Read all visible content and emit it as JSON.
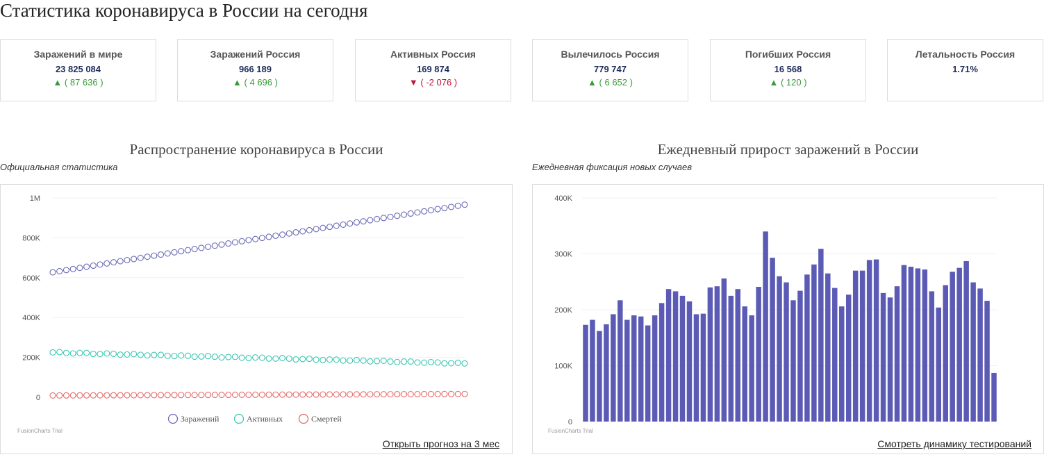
{
  "page": {
    "title": "Статистика коронавируса в России на сегодня"
  },
  "cards": [
    {
      "title": "Заражений в мире",
      "value": "23 825 084",
      "arrow": "▲",
      "delta": "( 87 636 )",
      "trend": "up"
    },
    {
      "title": "Заражений Россия",
      "value": "966 189",
      "arrow": "▲",
      "delta": "( 4 696 )",
      "trend": "up"
    },
    {
      "title": "Активных Россия",
      "value": "169 874",
      "arrow": "▼",
      "delta": "( -2 076 )",
      "trend": "down"
    },
    {
      "title": "Вылечилось Россия",
      "value": "779 747",
      "arrow": "▲",
      "delta": "( 6 652 )",
      "trend": "up"
    },
    {
      "title": "Погибших Россия",
      "value": "16 568",
      "arrow": "▲",
      "delta": "( 120 )",
      "trend": "up"
    },
    {
      "title": "Летальность Россия",
      "value": "1.71%",
      "arrow": "",
      "delta": "",
      "trend": "none"
    }
  ],
  "left_section": {
    "title": "Распространение коронавируса в России",
    "subtitle": "Официальная статистика",
    "trial": "FusionCharts Trial",
    "link": "Открыть прогноз на 3 мес"
  },
  "right_section": {
    "title": "Ежедневный прирост заражений в России",
    "subtitle": "Ежедневная фиксация новых случаев",
    "trial": "FusionCharts Trial",
    "link": "Смотреть динамику тестирований"
  },
  "colors": {
    "infected": "#6b6bb8",
    "active": "#3cc8b4",
    "deaths": "#e86a6a",
    "bars": "#5b5bb5",
    "up": "#3a9a3a",
    "down": "#c0143c"
  },
  "chart_data": [
    {
      "type": "line",
      "title": "Распространение коронавируса в России",
      "subtitle": "Официальная статистика",
      "y_ticks": [
        "0",
        "200K",
        "400K",
        "600K",
        "800K",
        "1M"
      ],
      "ylim": [
        0,
        1000000
      ],
      "point_count": 62,
      "legend_position": "bottom",
      "series": [
        {
          "name": "Заражений",
          "start": 627000,
          "end": 966189
        },
        {
          "name": "Активных",
          "start": 225000,
          "end": 169874
        },
        {
          "name": "Смертей",
          "start": 9000,
          "end": 16568
        }
      ]
    },
    {
      "type": "bar",
      "title": "Ежедневный прирост заражений в России",
      "subtitle": "Ежедневная фиксация новых случаев",
      "y_ticks": [
        "0",
        "100K",
        "200K",
        "300K",
        "400K"
      ],
      "ylim": [
        0,
        400000
      ],
      "values": [
        173000,
        182000,
        162000,
        174000,
        192000,
        217000,
        182000,
        190000,
        188000,
        172000,
        190000,
        212000,
        237000,
        233000,
        225000,
        215000,
        192000,
        193000,
        240000,
        242000,
        256000,
        225000,
        237000,
        206000,
        190000,
        241000,
        340000,
        293000,
        260000,
        249000,
        217000,
        234000,
        263000,
        281000,
        309000,
        265000,
        239000,
        206000,
        227000,
        270000,
        270000,
        289000,
        290000,
        230000,
        222000,
        242000,
        280000,
        277000,
        274000,
        272000,
        233000,
        204000,
        244000,
        268000,
        275000,
        287000,
        249000,
        238000,
        216000,
        87000
      ]
    }
  ]
}
